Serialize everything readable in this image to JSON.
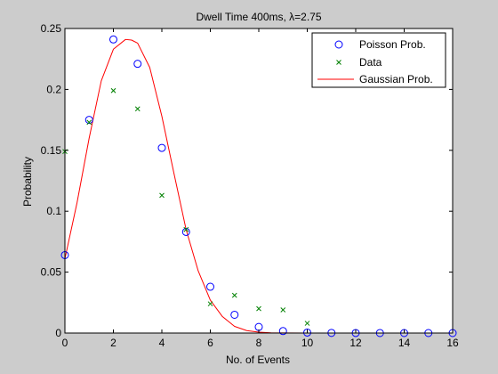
{
  "chart_data": {
    "type": "scatter",
    "title": "Dwell Time 400ms, λ=2.75",
    "xlabel": "No. of Events",
    "ylabel": "Probability",
    "xlim": [
      0,
      16
    ],
    "ylim": [
      0,
      0.25
    ],
    "xticks": [
      0,
      2,
      4,
      6,
      8,
      10,
      12,
      14,
      16
    ],
    "yticks": [
      0,
      0.05,
      0.1,
      0.15,
      0.2,
      0.25
    ],
    "xtick_labels": [
      "0",
      "2",
      "4",
      "6",
      "8",
      "10",
      "12",
      "14",
      "16"
    ],
    "ytick_labels": [
      "0",
      "0.05",
      "0.1",
      "0.15",
      "0.2",
      "0.25"
    ],
    "grid": false,
    "legend_position": "top-right",
    "series": [
      {
        "name": "Poisson Prob.",
        "marker": "circle",
        "color": "#0000ff",
        "x": [
          0,
          1,
          2,
          3,
          4,
          5,
          6,
          7,
          8,
          9,
          10,
          11,
          12,
          13,
          14,
          15,
          16
        ],
        "y": [
          0.064,
          0.175,
          0.241,
          0.221,
          0.152,
          0.083,
          0.038,
          0.015,
          0.005,
          0.0016,
          0.0004,
          0.0001,
          3e-05,
          1e-05,
          0.0,
          0.0,
          0.0
        ]
      },
      {
        "name": "Data",
        "marker": "x",
        "color": "#008000",
        "x": [
          0,
          1,
          2,
          3,
          4,
          5,
          6,
          7,
          8,
          9,
          10
        ],
        "y": [
          0.149,
          0.173,
          0.199,
          0.184,
          0.113,
          0.085,
          0.024,
          0.031,
          0.02,
          0.019,
          0.008
        ]
      },
      {
        "name": "Gaussian Prob.",
        "marker": "line",
        "color": "#ff0000",
        "x": [
          0,
          0.5,
          1,
          1.5,
          2,
          2.5,
          2.75,
          3,
          3.5,
          4,
          4.5,
          5,
          5.5,
          6,
          6.5,
          7,
          7.5,
          8,
          8.5,
          9,
          10,
          12,
          14,
          16
        ],
        "y": [
          0.061,
          0.107,
          0.16,
          0.207,
          0.233,
          0.241,
          0.2405,
          0.238,
          0.218,
          0.178,
          0.131,
          0.085,
          0.051,
          0.027,
          0.0135,
          0.0055,
          0.002,
          0.0007,
          0.0002,
          5e-05,
          0.0,
          0.0,
          0.0,
          0.0
        ]
      }
    ]
  }
}
